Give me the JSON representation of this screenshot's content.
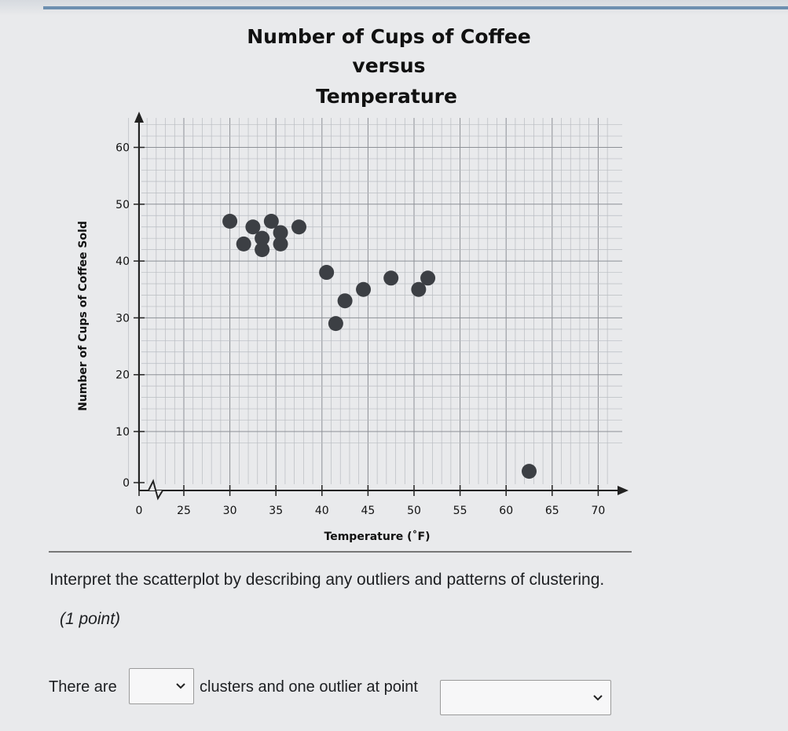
{
  "chart_data": {
    "type": "scatter",
    "title_lines": [
      "Number of Cups of Coffee",
      "versus",
      "Temperature"
    ],
    "xlabel": "Temperature (˚F)",
    "ylabel": "Number of Cups of Coffee Sold",
    "xlim": [
      20,
      72
    ],
    "ylim": [
      0,
      64
    ],
    "x_axis_break": true,
    "y_axis_break": true,
    "x_ticks": [
      0,
      25,
      30,
      35,
      40,
      45,
      50,
      55,
      60,
      65,
      70
    ],
    "y_ticks": [
      0,
      10,
      20,
      30,
      40,
      50,
      60
    ],
    "grid": true,
    "points": [
      {
        "x": 30,
        "y": 47
      },
      {
        "x": 31.5,
        "y": 43
      },
      {
        "x": 32.5,
        "y": 46
      },
      {
        "x": 33.5,
        "y": 44
      },
      {
        "x": 33.5,
        "y": 42
      },
      {
        "x": 34.5,
        "y": 47
      },
      {
        "x": 35.5,
        "y": 45
      },
      {
        "x": 35.5,
        "y": 43
      },
      {
        "x": 37.5,
        "y": 46
      },
      {
        "x": 40.5,
        "y": 38
      },
      {
        "x": 41.5,
        "y": 29
      },
      {
        "x": 42.5,
        "y": 33
      },
      {
        "x": 44.5,
        "y": 35
      },
      {
        "x": 47.5,
        "y": 37
      },
      {
        "x": 50.5,
        "y": 35
      },
      {
        "x": 51.5,
        "y": 37
      },
      {
        "x": 62.5,
        "y": 3
      }
    ],
    "point_color": "#3c3f44"
  },
  "question": {
    "prompt": "Interpret the scatterplot by describing any outliers and patterns of clustering.",
    "points_label": "(1 point)",
    "sentence_part1": "There are",
    "sentence_part2": "clusters and one outlier at point",
    "clusters_dropdown_value": "",
    "outlier_dropdown_value": ""
  },
  "colors": {
    "background": "#e9eaec",
    "top_rule": "#6d8fb0",
    "grid_minor": "#b9bcc1",
    "grid_major": "#8d9096",
    "axis": "#222222"
  },
  "icons": [
    "chevron-down-icon"
  ]
}
